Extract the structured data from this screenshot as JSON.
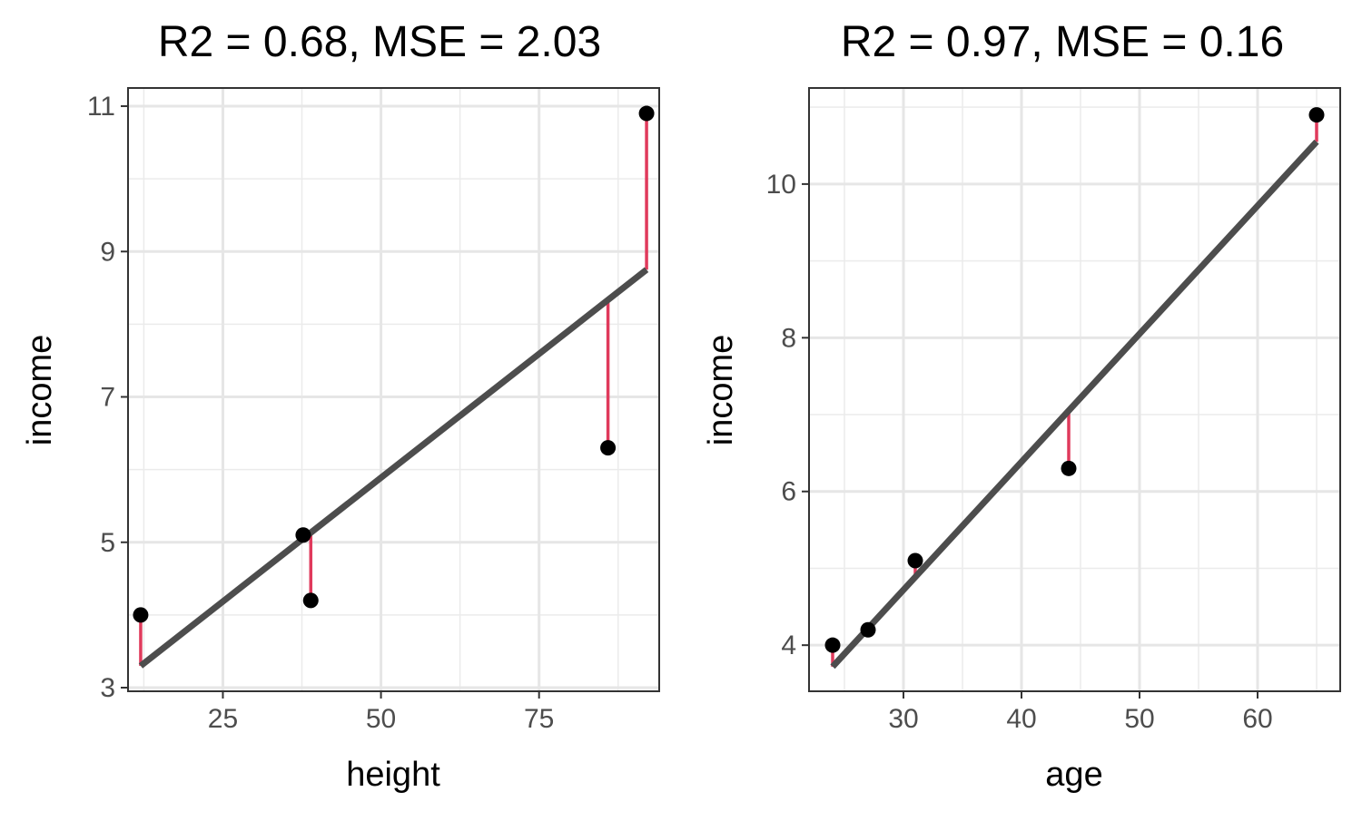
{
  "chart_data": [
    {
      "type": "scatter",
      "title": "R2 = 0.68, MSE = 2.03",
      "xlabel": "height",
      "ylabel": "income",
      "xlim": [
        10,
        94
      ],
      "ylim": [
        2.95,
        11.25
      ],
      "xticks": [
        25,
        50,
        75
      ],
      "yticks": [
        3,
        5,
        7,
        9,
        11
      ],
      "grid": true,
      "points": [
        {
          "x": 12,
          "y": 4.0
        },
        {
          "x": 37.7,
          "y": 5.1
        },
        {
          "x": 38.9,
          "y": 4.2
        },
        {
          "x": 85.9,
          "y": 6.3
        },
        {
          "x": 92,
          "y": 10.9
        }
      ],
      "fit": {
        "x": [
          12,
          92
        ],
        "y": [
          3.3,
          8.75
        ]
      },
      "residuals": [
        {
          "x": 12,
          "y_obs": 4.0,
          "y_fit": 3.3
        },
        {
          "x": 38.9,
          "y_obs": 4.2,
          "y_fit": 5.13
        },
        {
          "x": 85.9,
          "y_obs": 6.3,
          "y_fit": 8.33
        },
        {
          "x": 92,
          "y_obs": 10.9,
          "y_fit": 8.75
        }
      ],
      "colors": {
        "points": "#000000",
        "fit": "#4d4d4d",
        "residual": "#e03a5c"
      }
    },
    {
      "type": "scatter",
      "title": "R2 = 0.97, MSE = 0.16",
      "xlabel": "age",
      "ylabel": "income",
      "xlim": [
        22,
        67
      ],
      "ylim": [
        3.4,
        11.25
      ],
      "xticks": [
        30,
        40,
        50,
        60
      ],
      "yticks": [
        4,
        6,
        8,
        10
      ],
      "grid": true,
      "points": [
        {
          "x": 24,
          "y": 4.0
        },
        {
          "x": 27,
          "y": 4.2
        },
        {
          "x": 31,
          "y": 5.1
        },
        {
          "x": 44,
          "y": 6.3
        },
        {
          "x": 65,
          "y": 10.9
        }
      ],
      "fit": {
        "x": [
          24,
          65
        ],
        "y": [
          3.72,
          10.55
        ]
      },
      "residuals": [
        {
          "x": 24,
          "y_obs": 4.0,
          "y_fit": 3.72
        },
        {
          "x": 31,
          "y_obs": 5.1,
          "y_fit": 4.89
        },
        {
          "x": 44,
          "y_obs": 6.3,
          "y_fit": 7.05
        },
        {
          "x": 65,
          "y_obs": 10.9,
          "y_fit": 10.55
        }
      ],
      "colors": {
        "points": "#000000",
        "fit": "#4d4d4d",
        "residual": "#e03a5c"
      }
    }
  ]
}
